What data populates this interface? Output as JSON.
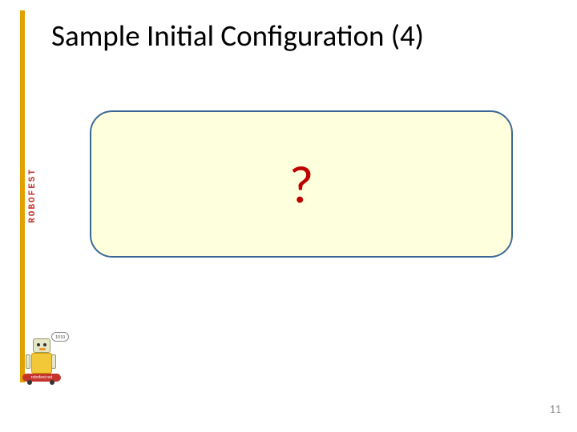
{
  "title": "Sample Initial Configuration (4)",
  "question_mark": "?",
  "page_number": "11",
  "sidebar": {
    "logo_text": "ROBOFEST",
    "robot_base_text": "robofest.net",
    "speech_text": "1010"
  },
  "colors": {
    "accent_bar": "#e2a100",
    "box_background": "#feffdc",
    "box_border": "#3b6894",
    "question_mark": "#c00000",
    "page_number": "#888888",
    "robofest_red": "#c4342d",
    "robot_yellow": "#f2c838"
  }
}
